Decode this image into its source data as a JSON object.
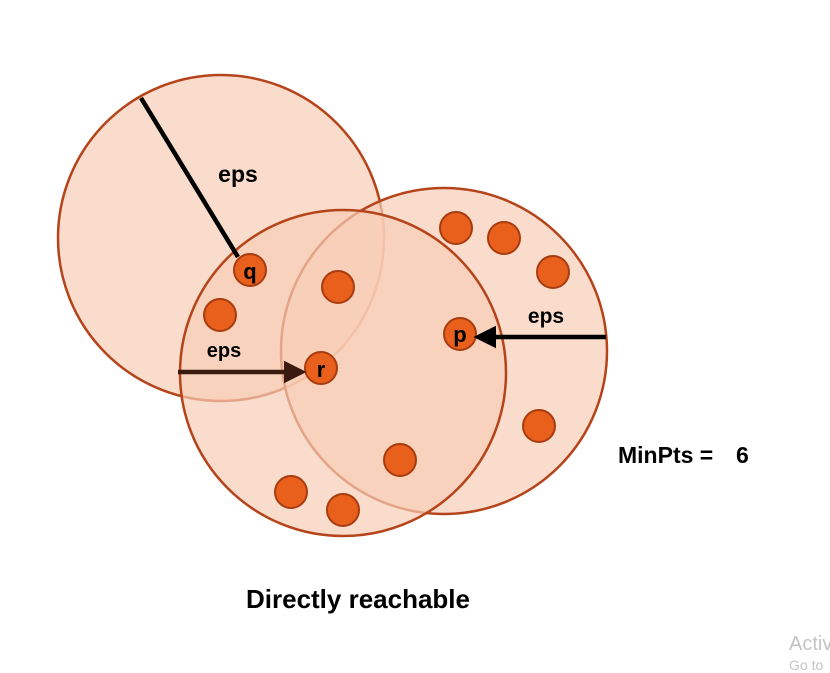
{
  "diagram": {
    "title": "Directly reachable",
    "minpts_label": "MinPts =",
    "minpts_value": "6",
    "points": {
      "q": "q",
      "p": "p",
      "r": "r"
    },
    "eps_labels": {
      "q": "eps",
      "p": "eps",
      "r": "eps"
    },
    "colors": {
      "circle_fill": "#f8cdb6",
      "circle_stroke": "#b5441a",
      "point_fill": "#e8601c",
      "point_stroke": "#a73c10",
      "radius_line": "#000000",
      "r_arrow": "#3b1a10"
    }
  },
  "watermark": {
    "line1": "Activ",
    "line2": "Go to"
  }
}
